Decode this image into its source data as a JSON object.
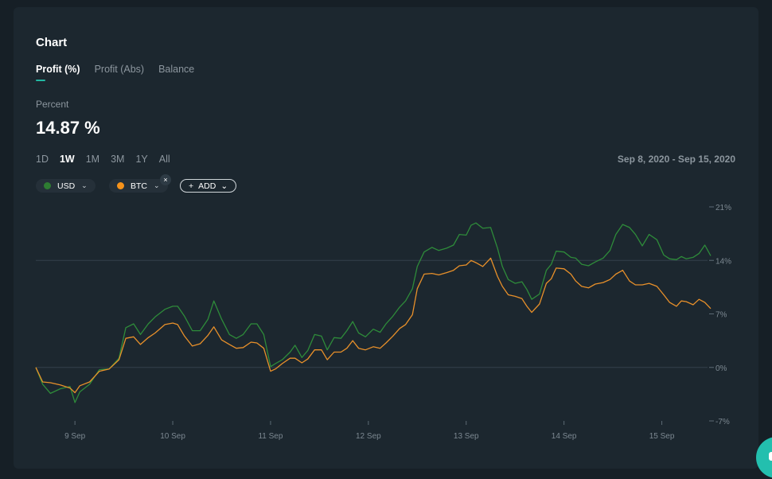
{
  "card": {
    "title": "Chart",
    "tabs": [
      {
        "label": "Profit (%)",
        "active": true
      },
      {
        "label": "Profit (Abs)",
        "active": false
      },
      {
        "label": "Balance",
        "active": false
      }
    ],
    "metric_label": "Percent",
    "metric_value": "14.87 %",
    "ranges": [
      {
        "label": "1D",
        "active": false
      },
      {
        "label": "1W",
        "active": true
      },
      {
        "label": "1M",
        "active": false
      },
      {
        "label": "3M",
        "active": false
      },
      {
        "label": "1Y",
        "active": false
      },
      {
        "label": "All",
        "active": false
      }
    ],
    "date_range": "Sep 8, 2020 - Sep 15, 2020",
    "legend": {
      "usd": {
        "label": "USD",
        "color": "#2e7d32",
        "icon": "chevron-down-icon"
      },
      "btc": {
        "label": "BTC",
        "color": "#f7931a",
        "icon": "chevron-down-icon",
        "remove_glyph": "×"
      },
      "add": {
        "label": "ADD",
        "plus_glyph": "+",
        "icon": "chevron-down-icon"
      }
    }
  },
  "colors": {
    "usd_line": "#2e8b3a",
    "btc_line": "#e8902a",
    "accent": "#22b8a2",
    "grid": "#33414b"
  },
  "chart_data": {
    "type": "line",
    "x_unit": "days since Sep 8, 2020 00:00",
    "xlim": [
      0,
      7.5
    ],
    "ylim": [
      -7,
      21
    ],
    "y_ticks": [
      "21%",
      "14%",
      "7%",
      "0%",
      "-7%"
    ],
    "y_tick_values": [
      21,
      14,
      7,
      0,
      -7
    ],
    "x_ticks": [
      "9 Sep",
      "10 Sep",
      "11 Sep",
      "12 Sep",
      "13 Sep",
      "14 Sep",
      "15 Sep"
    ],
    "x_tick_values": [
      1,
      2,
      3,
      4,
      5,
      6,
      7
    ],
    "series": [
      {
        "name": "USD",
        "points": [
          [
            0.6,
            0
          ],
          [
            0.67,
            -2.2
          ],
          [
            0.75,
            -3.4
          ],
          [
            0.85,
            -2.8
          ],
          [
            0.95,
            -2.5
          ],
          [
            1.0,
            -4.6
          ],
          [
            1.05,
            -3.2
          ],
          [
            1.15,
            -2.2
          ],
          [
            1.25,
            -0.3
          ],
          [
            1.35,
            -0.2
          ],
          [
            1.45,
            1.2
          ],
          [
            1.52,
            5.2
          ],
          [
            1.6,
            5.7
          ],
          [
            1.67,
            4.3
          ],
          [
            1.75,
            5.7
          ],
          [
            1.82,
            6.6
          ],
          [
            1.92,
            7.6
          ],
          [
            2.0,
            8.0
          ],
          [
            2.05,
            8.0
          ],
          [
            2.12,
            6.7
          ],
          [
            2.2,
            4.8
          ],
          [
            2.28,
            4.8
          ],
          [
            2.36,
            6.3
          ],
          [
            2.42,
            8.7
          ],
          [
            2.5,
            6.3
          ],
          [
            2.58,
            4.3
          ],
          [
            2.65,
            3.8
          ],
          [
            2.72,
            4.3
          ],
          [
            2.8,
            5.7
          ],
          [
            2.86,
            5.7
          ],
          [
            2.93,
            4.3
          ],
          [
            3.0,
            0.1
          ],
          [
            3.05,
            0.5
          ],
          [
            3.12,
            1.0
          ],
          [
            3.2,
            2.0
          ],
          [
            3.25,
            2.9
          ],
          [
            3.32,
            1.3
          ],
          [
            3.38,
            2.2
          ],
          [
            3.45,
            4.3
          ],
          [
            3.52,
            4.1
          ],
          [
            3.58,
            2.3
          ],
          [
            3.65,
            3.9
          ],
          [
            3.72,
            3.8
          ],
          [
            3.78,
            4.8
          ],
          [
            3.84,
            6.0
          ],
          [
            3.9,
            4.5
          ],
          [
            3.97,
            4.0
          ],
          [
            4.05,
            5.0
          ],
          [
            4.12,
            4.6
          ],
          [
            4.18,
            5.7
          ],
          [
            4.25,
            6.7
          ],
          [
            4.32,
            7.9
          ],
          [
            4.38,
            8.7
          ],
          [
            4.45,
            10.3
          ],
          [
            4.5,
            13.2
          ],
          [
            4.57,
            15.1
          ],
          [
            4.65,
            15.7
          ],
          [
            4.72,
            15.3
          ],
          [
            4.8,
            15.6
          ],
          [
            4.87,
            16.0
          ],
          [
            4.93,
            17.4
          ],
          [
            5.0,
            17.3
          ],
          [
            5.05,
            18.6
          ],
          [
            5.1,
            18.9
          ],
          [
            5.17,
            18.2
          ],
          [
            5.25,
            18.3
          ],
          [
            5.32,
            15.6
          ],
          [
            5.37,
            13.2
          ],
          [
            5.43,
            11.5
          ],
          [
            5.5,
            11.0
          ],
          [
            5.57,
            11.2
          ],
          [
            5.62,
            10.2
          ],
          [
            5.67,
            8.9
          ],
          [
            5.75,
            9.6
          ],
          [
            5.82,
            12.7
          ],
          [
            5.87,
            13.5
          ],
          [
            5.92,
            15.2
          ],
          [
            6.0,
            15.1
          ],
          [
            6.07,
            14.4
          ],
          [
            6.12,
            14.3
          ],
          [
            6.18,
            13.5
          ],
          [
            6.25,
            13.3
          ],
          [
            6.32,
            13.8
          ],
          [
            6.4,
            14.3
          ],
          [
            6.47,
            15.3
          ],
          [
            6.53,
            17.4
          ],
          [
            6.6,
            18.7
          ],
          [
            6.67,
            18.3
          ],
          [
            6.73,
            17.4
          ],
          [
            6.8,
            15.9
          ],
          [
            6.87,
            17.4
          ],
          [
            6.95,
            16.7
          ],
          [
            7.02,
            14.7
          ],
          [
            7.08,
            14.2
          ],
          [
            7.15,
            14.1
          ],
          [
            7.2,
            14.5
          ],
          [
            7.25,
            14.2
          ],
          [
            7.32,
            14.4
          ],
          [
            7.38,
            14.9
          ],
          [
            7.44,
            16.0
          ],
          [
            7.5,
            14.6
          ]
        ]
      },
      {
        "name": "BTC",
        "points": [
          [
            0.6,
            0
          ],
          [
            0.67,
            -1.9
          ],
          [
            0.75,
            -2.0
          ],
          [
            0.85,
            -2.3
          ],
          [
            0.95,
            -2.7
          ],
          [
            1.0,
            -3.3
          ],
          [
            1.05,
            -2.4
          ],
          [
            1.15,
            -1.9
          ],
          [
            1.25,
            -0.5
          ],
          [
            1.35,
            -0.2
          ],
          [
            1.45,
            1.0
          ],
          [
            1.52,
            3.8
          ],
          [
            1.6,
            4.0
          ],
          [
            1.67,
            3.0
          ],
          [
            1.75,
            3.9
          ],
          [
            1.82,
            4.5
          ],
          [
            1.92,
            5.6
          ],
          [
            2.0,
            5.8
          ],
          [
            2.05,
            5.6
          ],
          [
            2.12,
            4.1
          ],
          [
            2.2,
            2.8
          ],
          [
            2.28,
            3.1
          ],
          [
            2.36,
            4.2
          ],
          [
            2.42,
            5.3
          ],
          [
            2.5,
            3.6
          ],
          [
            2.58,
            3.0
          ],
          [
            2.65,
            2.5
          ],
          [
            2.72,
            2.6
          ],
          [
            2.8,
            3.3
          ],
          [
            2.86,
            3.2
          ],
          [
            2.93,
            2.5
          ],
          [
            3.0,
            -0.5
          ],
          [
            3.05,
            -0.2
          ],
          [
            3.12,
            0.5
          ],
          [
            3.2,
            1.2
          ],
          [
            3.25,
            1.2
          ],
          [
            3.32,
            0.6
          ],
          [
            3.38,
            1.1
          ],
          [
            3.45,
            2.3
          ],
          [
            3.52,
            2.3
          ],
          [
            3.58,
            1.0
          ],
          [
            3.65,
            2.0
          ],
          [
            3.72,
            2.0
          ],
          [
            3.78,
            2.5
          ],
          [
            3.84,
            3.5
          ],
          [
            3.9,
            2.5
          ],
          [
            3.97,
            2.3
          ],
          [
            4.05,
            2.7
          ],
          [
            4.12,
            2.5
          ],
          [
            4.18,
            3.2
          ],
          [
            4.25,
            4.1
          ],
          [
            4.32,
            5.1
          ],
          [
            4.38,
            5.6
          ],
          [
            4.45,
            6.9
          ],
          [
            4.5,
            10.3
          ],
          [
            4.57,
            12.2
          ],
          [
            4.65,
            12.3
          ],
          [
            4.72,
            12.1
          ],
          [
            4.8,
            12.4
          ],
          [
            4.87,
            12.7
          ],
          [
            4.93,
            13.3
          ],
          [
            5.0,
            13.4
          ],
          [
            5.05,
            14.0
          ],
          [
            5.1,
            13.7
          ],
          [
            5.17,
            13.2
          ],
          [
            5.25,
            14.3
          ],
          [
            5.32,
            11.9
          ],
          [
            5.37,
            10.6
          ],
          [
            5.43,
            9.5
          ],
          [
            5.5,
            9.3
          ],
          [
            5.57,
            9.0
          ],
          [
            5.62,
            8.0
          ],
          [
            5.67,
            7.2
          ],
          [
            5.75,
            8.3
          ],
          [
            5.82,
            11.0
          ],
          [
            5.87,
            11.6
          ],
          [
            5.92,
            13.0
          ],
          [
            6.0,
            12.9
          ],
          [
            6.07,
            12.2
          ],
          [
            6.12,
            11.3
          ],
          [
            6.18,
            10.6
          ],
          [
            6.25,
            10.4
          ],
          [
            6.32,
            10.9
          ],
          [
            6.4,
            11.1
          ],
          [
            6.47,
            11.5
          ],
          [
            6.53,
            12.2
          ],
          [
            6.6,
            12.7
          ],
          [
            6.67,
            11.3
          ],
          [
            6.73,
            10.8
          ],
          [
            6.8,
            10.8
          ],
          [
            6.87,
            11.0
          ],
          [
            6.95,
            10.6
          ],
          [
            7.02,
            9.5
          ],
          [
            7.08,
            8.5
          ],
          [
            7.15,
            8.0
          ],
          [
            7.2,
            8.7
          ],
          [
            7.25,
            8.6
          ],
          [
            7.32,
            8.2
          ],
          [
            7.38,
            8.9
          ],
          [
            7.44,
            8.5
          ],
          [
            7.5,
            7.7
          ]
        ]
      }
    ]
  }
}
